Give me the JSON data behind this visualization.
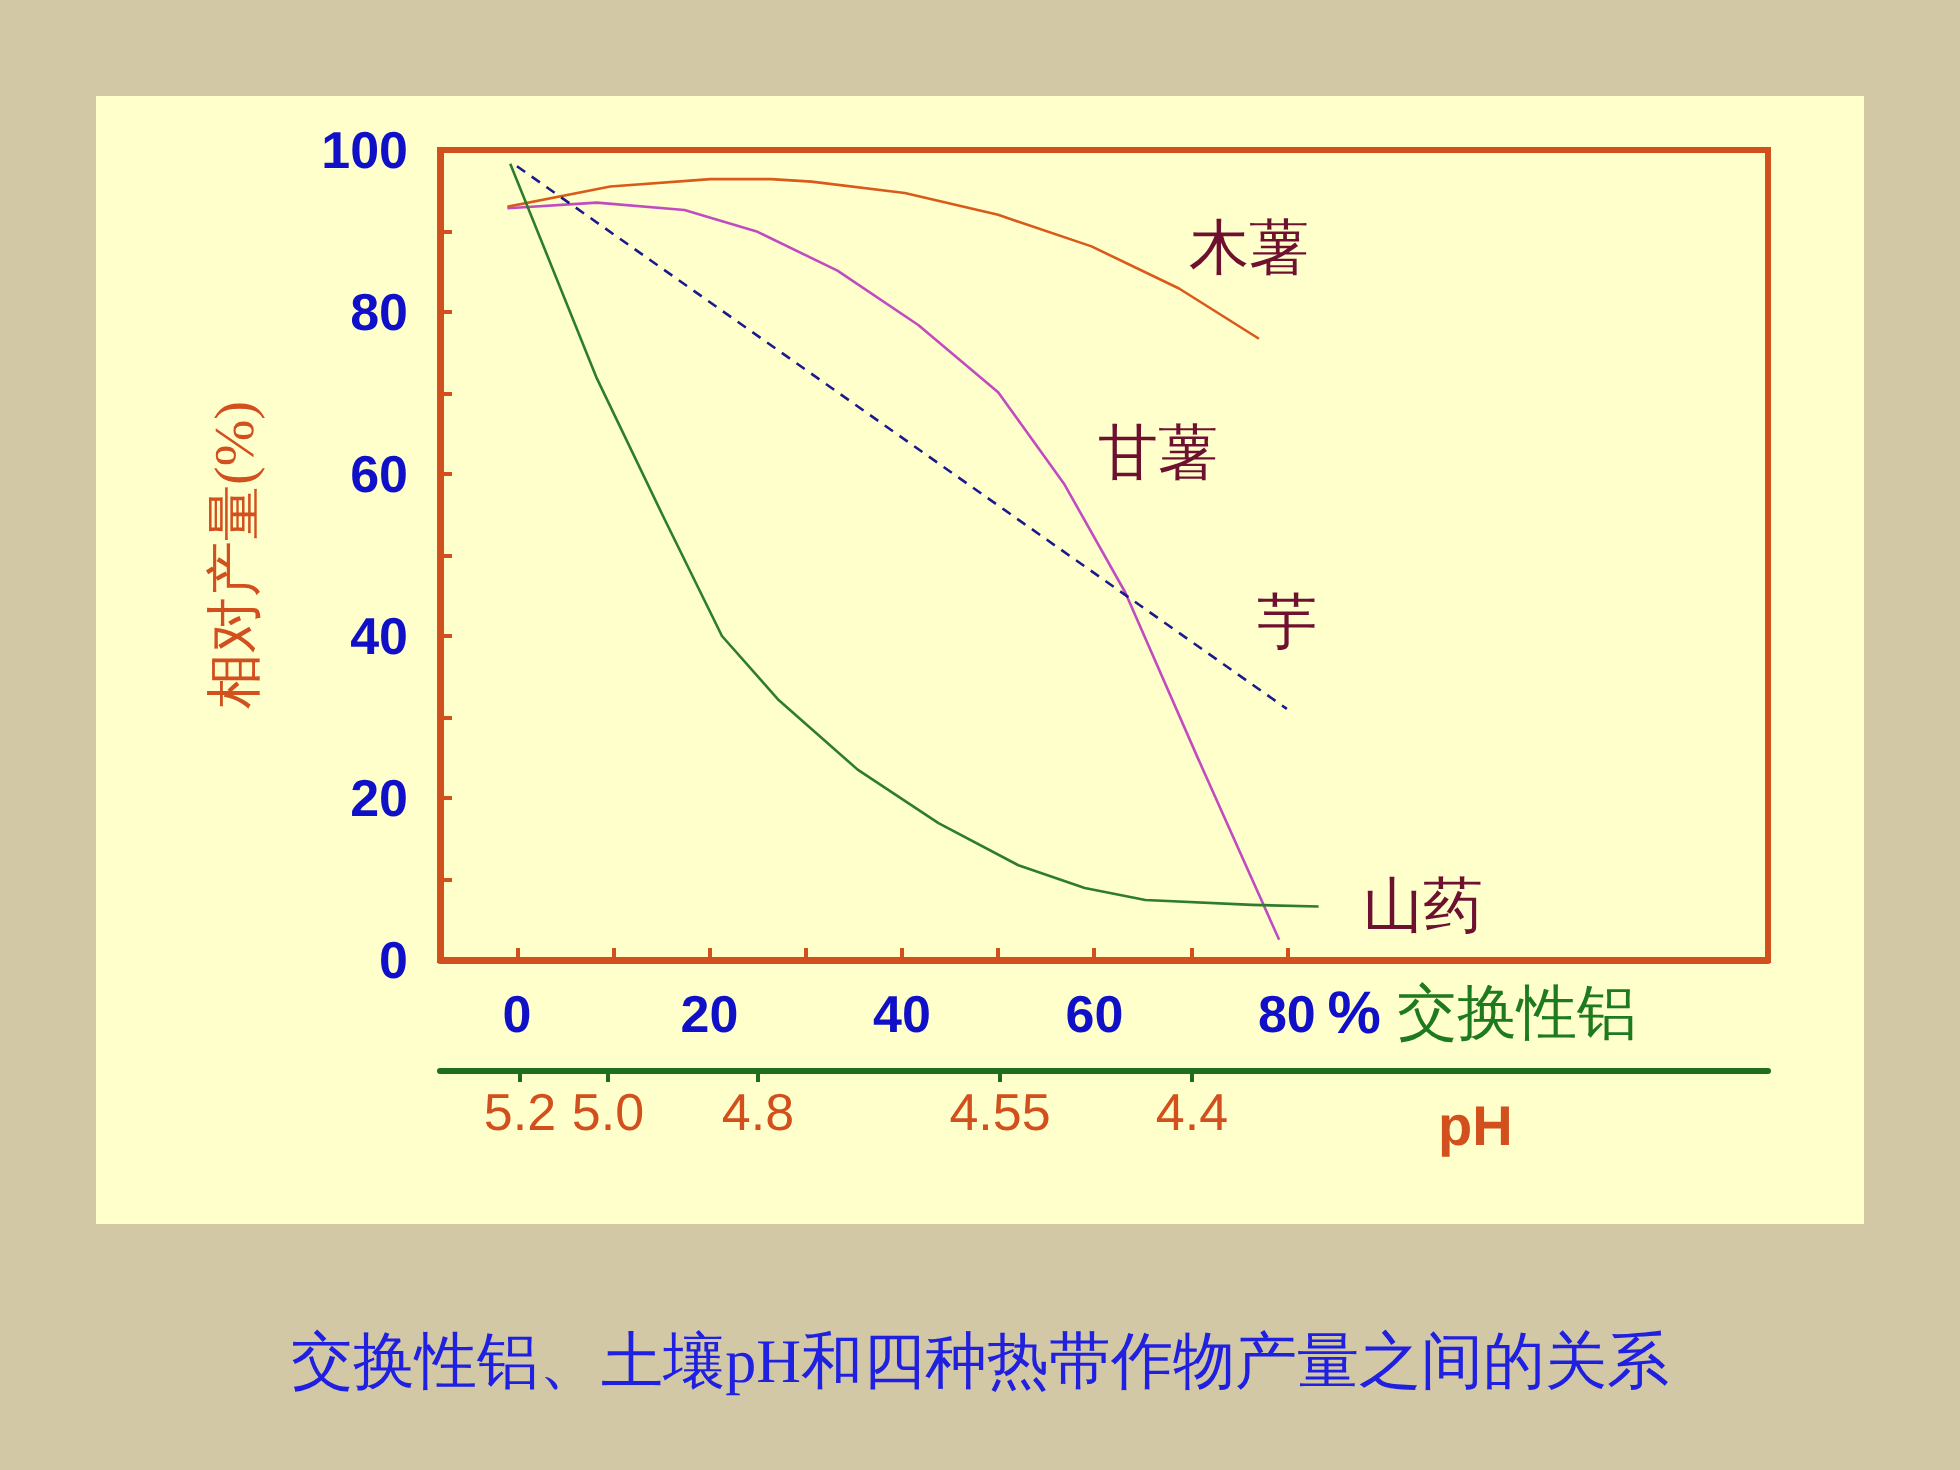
{
  "chart_data": {
    "type": "line",
    "title": "交换性铝、土壤pH和四种热带作物产量之间的关系",
    "xlabel": "%交换性铝",
    "ylabel": "相对产量(%)",
    "x2label": "pH",
    "xlim": [
      -8,
      130
    ],
    "ylim": [
      0,
      100
    ],
    "xticks": [
      0,
      {
        "value": 10,
        "label": null
      },
      20,
      {
        "value": 30,
        "label": null
      },
      40,
      {
        "value": 50,
        "label": null
      },
      60,
      {
        "value": 70,
        "label": null
      },
      80
    ],
    "yticks": [
      0,
      {
        "value": 10,
        "label": null
      },
      20,
      {
        "value": 30,
        "label": null
      },
      40,
      {
        "value": 50,
        "label": null
      },
      60,
      {
        "value": 70,
        "label": null
      },
      80,
      {
        "value": 90,
        "label": null
      },
      100
    ],
    "annotations": [
      "5.2",
      "5.0",
      "4.8",
      "4.55",
      "4.4"
    ],
    "grid": false,
    "legend": false,
    "marker": "none",
    "series": [
      {
        "name": "木薯",
        "color": "#d95a1a",
        "x": [
          -1,
          9.7,
          20.1,
          26.4,
          30.6,
          40.3,
          50,
          59.7,
          68.8,
          77.1
        ],
        "values": [
          93,
          95.5,
          96.4,
          96.4,
          96.1,
          94.7,
          92,
          88.1,
          82.9,
          76.7
        ]
      },
      {
        "name": "甘薯",
        "color": "#c04cc0",
        "x": [
          -1,
          8.3,
          17.4,
          25,
          33.3,
          41.7,
          50,
          56.9,
          63.2,
          70.8,
          79.2
        ],
        "values": [
          92.8,
          93.5,
          92.6,
          89.9,
          85.1,
          78.4,
          70.1,
          58.7,
          45.4,
          24.8,
          2.5
        ]
      },
      {
        "name": "芋",
        "color": "#1a1a8c",
        "line_style": "dashed",
        "x": [
          0,
          80
        ],
        "values": [
          98,
          31
        ]
      },
      {
        "name": "山药",
        "color": "#2e7d2e",
        "x": [
          -0.7,
          8.3,
          15.3,
          21.3,
          27.1,
          35.4,
          43.8,
          52.1,
          59,
          65.3,
          76.4,
          83.3
        ],
        "values": [
          98.3,
          71.8,
          54.5,
          40,
          32.2,
          23.5,
          16.9,
          11.7,
          8.9,
          7.4,
          6.8,
          6.6
        ]
      }
    ]
  }
}
